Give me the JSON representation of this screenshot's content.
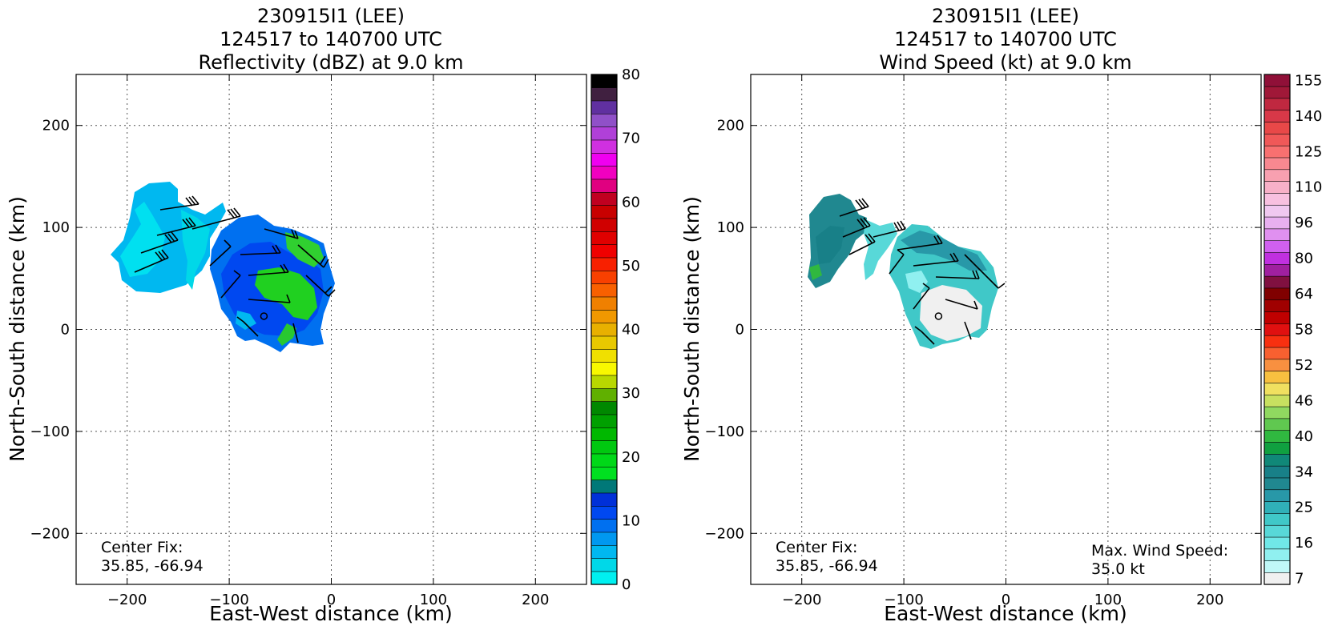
{
  "colors": {
    "reflectivity": [
      "#00f0f0",
      "#00d8e8",
      "#00b8f0",
      "#0098f0",
      "#0070f0",
      "#0048f0",
      "#0030d8",
      "#007878",
      "#00e020",
      "#00d818",
      "#00c810",
      "#00b800",
      "#00a000",
      "#008800",
      "#60b000",
      "#b8d800",
      "#f8f800",
      "#f0e000",
      "#e8c800",
      "#e8b000",
      "#f09800",
      "#f08000",
      "#f86000",
      "#f84000",
      "#f82000",
      "#f00000",
      "#e00000",
      "#d00000",
      "#c80000",
      "#c00020",
      "#e00080",
      "#f000c0",
      "#f000f0",
      "#d030e0",
      "#b040d8",
      "#9050c8",
      "#6030a0",
      "#402040",
      "#000000"
    ],
    "wind": [
      "#f0f0f0",
      "#c0f8f8",
      "#90f0f0",
      "#70e8e8",
      "#58d8d8",
      "#40c8c8",
      "#30b0b8",
      "#2898a8",
      "#208890",
      "#188088",
      "#108878",
      "#10a040",
      "#30b840",
      "#60c850",
      "#90d860",
      "#c8e060",
      "#f0e060",
      "#f8c040",
      "#f89040",
      "#f86030",
      "#f83010",
      "#e01010",
      "#c00000",
      "#a00000",
      "#800000",
      "#801040",
      "#a020a0",
      "#c030e0",
      "#d060f0",
      "#e090f0",
      "#e8b0f0",
      "#f0c8f0",
      "#f8c0e0",
      "#f8b0c8",
      "#f8a0b0",
      "#f88890",
      "#f87070",
      "#f05858",
      "#e84848",
      "#d83848",
      "#c02840",
      "#a01838",
      "#901038"
    ]
  },
  "chart_data": [
    {
      "type": "heatmap",
      "title": [
        "230915I1 (LEE)",
        "124517 to 140700 UTC",
        "Reflectivity (dBZ) at 9.0 km"
      ],
      "xlabel": "East-West distance (km)",
      "ylabel": "North-South distance (km)",
      "xlim": [
        -250,
        250
      ],
      "ylim": [
        -250,
        250
      ],
      "xticks": [
        -200,
        -100,
        0,
        100,
        200
      ],
      "yticks": [
        -200,
        -100,
        0,
        100,
        200
      ],
      "grid": true,
      "colorbar": {
        "min": 0,
        "max": 80,
        "step": 2.105,
        "ticks": [
          0,
          10,
          20,
          30,
          40,
          50,
          60,
          70,
          80
        ]
      },
      "annotations": [
        {
          "lines": [
            "Center Fix:",
            "35.85, -66.94"
          ],
          "position": "bottom-left"
        }
      ],
      "center_marker": {
        "x": -66,
        "y": 13
      }
    },
    {
      "type": "heatmap",
      "title": [
        "230915I1 (LEE)",
        "124517 to 140700 UTC",
        "Wind Speed (kt) at 9.0 km"
      ],
      "xlabel": "East-West distance (km)",
      "ylabel": "North-South distance (km)",
      "xlim": [
        -250,
        250
      ],
      "ylim": [
        -250,
        250
      ],
      "xticks": [
        -200,
        -100,
        0,
        100,
        200
      ],
      "yticks": [
        -200,
        -100,
        0,
        100,
        200
      ],
      "grid": true,
      "colorbar": {
        "ticks": [
          "7",
          "16",
          "25",
          "34",
          "40",
          "46",
          "52",
          "58",
          "64",
          "80",
          "96",
          "110",
          "125",
          "140",
          "155"
        ]
      },
      "annotations": [
        {
          "lines": [
            "Center Fix:",
            "35.85, -66.94"
          ],
          "position": "bottom-left"
        },
        {
          "lines": [
            "Max. Wind Speed:",
            "35.0 kt"
          ],
          "position": "bottom-right"
        }
      ],
      "center_marker": {
        "x": -66,
        "y": 13
      }
    }
  ]
}
